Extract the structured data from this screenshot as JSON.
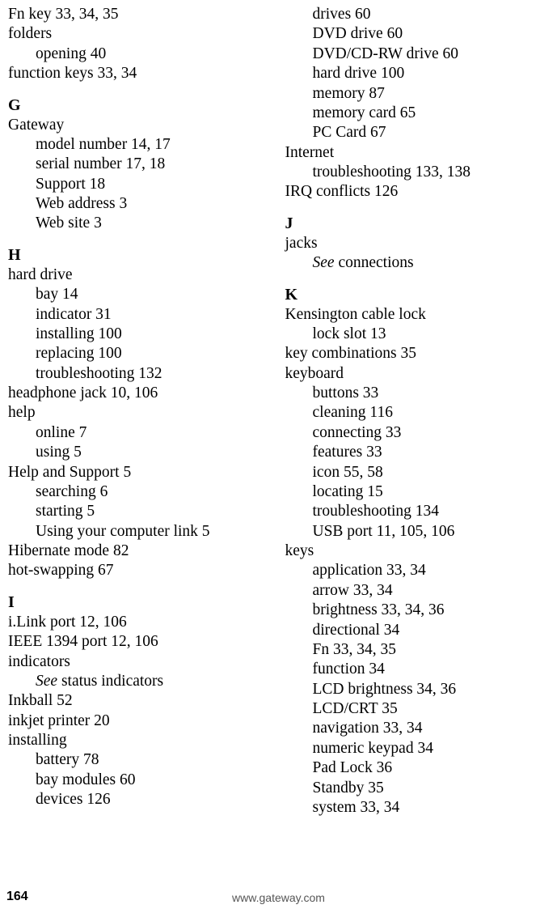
{
  "left": {
    "pre": [
      {
        "t": "Fn key 33, 34, 35",
        "sub": false
      },
      {
        "t": "folders",
        "sub": false
      },
      {
        "t": "opening 40",
        "sub": true
      },
      {
        "t": "function keys 33, 34",
        "sub": false
      }
    ],
    "groups": [
      {
        "letter": "G",
        "items": [
          {
            "t": "Gateway",
            "sub": false
          },
          {
            "t": "model number 14, 17",
            "sub": true
          },
          {
            "t": "serial number 17, 18",
            "sub": true
          },
          {
            "t": "Support 18",
            "sub": true
          },
          {
            "t": "Web address 3",
            "sub": true
          },
          {
            "t": "Web site 3",
            "sub": true
          }
        ]
      },
      {
        "letter": "H",
        "items": [
          {
            "t": "hard drive",
            "sub": false
          },
          {
            "t": "bay 14",
            "sub": true
          },
          {
            "t": "indicator 31",
            "sub": true
          },
          {
            "t": "installing 100",
            "sub": true
          },
          {
            "t": "replacing 100",
            "sub": true
          },
          {
            "t": "troubleshooting 132",
            "sub": true
          },
          {
            "t": "headphone jack 10, 106",
            "sub": false
          },
          {
            "t": "help",
            "sub": false
          },
          {
            "t": "online 7",
            "sub": true
          },
          {
            "t": "using 5",
            "sub": true
          },
          {
            "t": "Help and Support 5",
            "sub": false
          },
          {
            "t": "searching 6",
            "sub": true
          },
          {
            "t": "starting 5",
            "sub": true
          },
          {
            "t": "Using your computer link 5",
            "sub": true
          },
          {
            "t": "Hibernate mode 82",
            "sub": false
          },
          {
            "t": "hot-swapping 67",
            "sub": false
          }
        ]
      },
      {
        "letter": "I",
        "items": [
          {
            "t": "i.Link port 12, 106",
            "sub": false
          },
          {
            "t": "IEEE 1394 port 12, 106",
            "sub": false
          },
          {
            "t": "indicators",
            "sub": false
          },
          {
            "t": "<i>See</i> status indicators",
            "sub": true,
            "html": true
          },
          {
            "t": "Inkball 52",
            "sub": false
          },
          {
            "t": "inkjet printer 20",
            "sub": false
          },
          {
            "t": "installing",
            "sub": false
          },
          {
            "t": "battery 78",
            "sub": true
          },
          {
            "t": "bay modules 60",
            "sub": true
          },
          {
            "t": "devices 126",
            "sub": true
          }
        ]
      }
    ]
  },
  "right": {
    "pre": [
      {
        "t": "drives 60",
        "sub": true
      },
      {
        "t": "DVD drive 60",
        "sub": true
      },
      {
        "t": "DVD/CD-RW drive 60",
        "sub": true
      },
      {
        "t": "hard drive 100",
        "sub": true
      },
      {
        "t": "memory 87",
        "sub": true
      },
      {
        "t": "memory card 65",
        "sub": true
      },
      {
        "t": "PC Card 67",
        "sub": true
      },
      {
        "t": "Internet",
        "sub": false
      },
      {
        "t": "troubleshooting 133, 138",
        "sub": true
      },
      {
        "t": "IRQ conflicts 126",
        "sub": false
      }
    ],
    "groups": [
      {
        "letter": "J",
        "items": [
          {
            "t": "jacks",
            "sub": false
          },
          {
            "t": "<i>See</i> connections",
            "sub": true,
            "html": true
          }
        ]
      },
      {
        "letter": "K",
        "items": [
          {
            "t": "Kensington cable lock",
            "sub": false
          },
          {
            "t": "lock slot 13",
            "sub": true
          },
          {
            "t": "key combinations 35",
            "sub": false
          },
          {
            "t": "keyboard",
            "sub": false
          },
          {
            "t": "buttons 33",
            "sub": true
          },
          {
            "t": "cleaning 116",
            "sub": true
          },
          {
            "t": "connecting 33",
            "sub": true
          },
          {
            "t": "features 33",
            "sub": true
          },
          {
            "t": "icon 55, 58",
            "sub": true
          },
          {
            "t": "locating 15",
            "sub": true
          },
          {
            "t": "troubleshooting 134",
            "sub": true
          },
          {
            "t": "USB port 11, 105, 106",
            "sub": true
          },
          {
            "t": "keys",
            "sub": false
          },
          {
            "t": "application 33, 34",
            "sub": true
          },
          {
            "t": "arrow 33, 34",
            "sub": true
          },
          {
            "t": "brightness 33, 34, 36",
            "sub": true
          },
          {
            "t": "directional 34",
            "sub": true
          },
          {
            "t": "Fn 33, 34, 35",
            "sub": true
          },
          {
            "t": "function 34",
            "sub": true
          },
          {
            "t": "LCD brightness 34, 36",
            "sub": true
          },
          {
            "t": "LCD/CRT 35",
            "sub": true
          },
          {
            "t": "navigation 33, 34",
            "sub": true
          },
          {
            "t": "numeric keypad 34",
            "sub": true
          },
          {
            "t": "Pad Lock 36",
            "sub": true
          },
          {
            "t": "Standby 35",
            "sub": true
          },
          {
            "t": "system 33, 34",
            "sub": true
          }
        ]
      }
    ]
  },
  "footer": {
    "page": "164",
    "url": "www.gateway.com"
  }
}
